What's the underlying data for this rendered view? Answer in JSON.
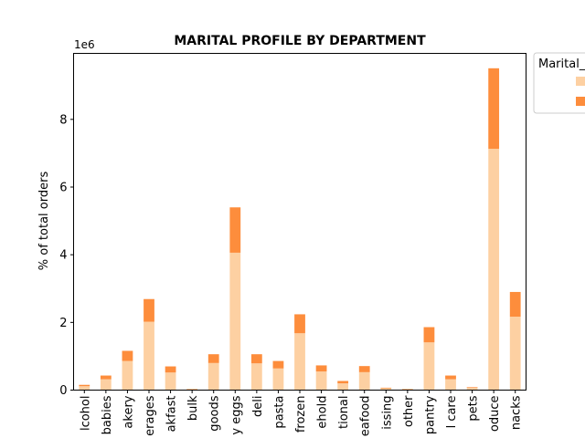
{
  "chart_data": {
    "type": "bar",
    "stacked": true,
    "title": "MARITAL PROFILE BY DEPARTMENT",
    "ylabel": "% of total orders",
    "xlabel": "",
    "y_offset_label": "1e6",
    "y_scale": 1000000,
    "ylim": [
      0,
      9950000
    ],
    "yticks": [
      0,
      2000000,
      4000000,
      6000000,
      8000000
    ],
    "ytick_labels": [
      "0",
      "2",
      "4",
      "6",
      "8"
    ],
    "legend": {
      "title": "Marital_",
      "placement": "upper-right-outside",
      "entries": [
        "",
        ""
      ]
    },
    "categories": [
      "lcohol",
      "babies",
      "akery",
      "erages",
      "akfast",
      "bulk",
      "goods",
      "y eggs",
      "deli",
      "pasta",
      "frozen",
      "ehold",
      "tional",
      "eafood",
      "issing",
      "other",
      "pantry",
      "l care",
      "pets",
      "oduce",
      "nacks"
    ],
    "series": [
      {
        "color": "#fdd0a2",
        "values": [
          115000,
          320000,
          860000,
          2020000,
          520000,
          25000,
          800000,
          4060000,
          790000,
          640000,
          1680000,
          550000,
          200000,
          530000,
          50000,
          25000,
          1410000,
          320000,
          65000,
          7130000,
          2170000
        ]
      },
      {
        "color": "#fd8d3c",
        "values": [
          40000,
          110000,
          300000,
          670000,
          180000,
          10000,
          260000,
          1340000,
          270000,
          220000,
          560000,
          180000,
          70000,
          180000,
          20000,
          10000,
          450000,
          110000,
          20000,
          2380000,
          730000
        ]
      }
    ]
  }
}
